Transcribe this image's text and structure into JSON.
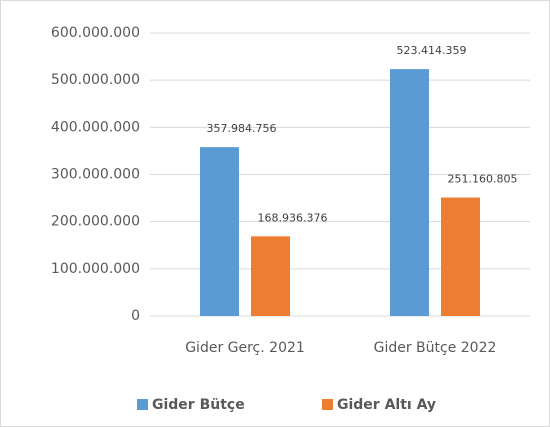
{
  "chart_data": {
    "type": "bar",
    "categories": [
      "Gider Gerç. 2021",
      "Gider Bütçe 2022"
    ],
    "series": [
      {
        "name": "Gider Bütçe",
        "color": "#5b9bd5",
        "values": [
          357984756,
          523414359
        ],
        "value_labels": [
          "357.984.756",
          "523.414.359"
        ]
      },
      {
        "name": "Gider Altı Ay",
        "color": "#ed7d31",
        "values": [
          168936376,
          251160805
        ],
        "value_labels": [
          "168.936.376",
          "251.160.805"
        ]
      }
    ],
    "ylim": [
      0,
      600000000
    ],
    "yticks": [
      0,
      {
        "value": 100000000,
        "label": "100.000.000"
      },
      {
        "value": 200000000,
        "label": "200.000.000"
      },
      {
        "value": 300000000,
        "label": "300.000.000"
      },
      {
        "value": 400000000,
        "label": "400.000.000"
      },
      {
        "value": 500000000,
        "label": "500.000.000"
      },
      {
        "value": 600000000,
        "label": "600.000.000"
      }
    ],
    "grid": true,
    "legend": "bottom"
  }
}
